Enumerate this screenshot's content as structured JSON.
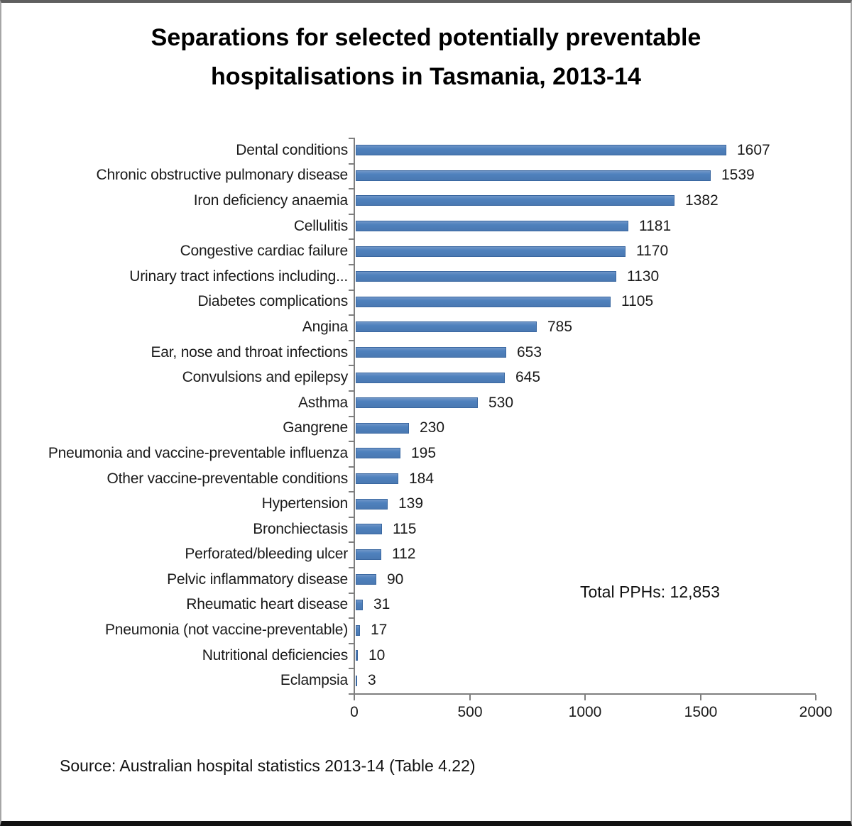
{
  "title": "Separations for selected potentially preventable hospitalisations in Tasmania, 2013-14",
  "chart_data": {
    "type": "bar",
    "orientation": "horizontal",
    "title": "Separations for selected potentially preventable hospitalisations in Tasmania, 2013-14",
    "categories": [
      "Dental conditions",
      "Chronic obstructive pulmonary disease",
      "Iron deficiency anaemia",
      "Cellulitis",
      "Congestive cardiac failure",
      "Urinary tract infections including...",
      "Diabetes complications",
      "Angina",
      "Ear, nose and throat infections",
      "Convulsions and epilepsy",
      "Asthma",
      "Gangrene",
      "Pneumonia and vaccine-preventable influenza",
      "Other vaccine-preventable conditions",
      "Hypertension",
      "Bronchiectasis",
      "Perforated/bleeding ulcer",
      "Pelvic inflammatory disease",
      "Rheumatic heart disease",
      "Pneumonia (not vaccine-preventable)",
      "Nutritional deficiencies",
      "Eclampsia"
    ],
    "values": [
      1607,
      1539,
      1382,
      1181,
      1170,
      1130,
      1105,
      785,
      653,
      645,
      530,
      230,
      195,
      184,
      139,
      115,
      112,
      90,
      31,
      17,
      10,
      3
    ],
    "value_labels": [
      "1607",
      "1539",
      "1382",
      "1181",
      "1170",
      "1130",
      "1105",
      "785",
      "653",
      "645",
      "530",
      "230",
      "195",
      "184",
      "139",
      "115",
      "112",
      "90",
      "31",
      "17",
      "10",
      "3"
    ],
    "xlim": [
      0,
      2000
    ],
    "xticks": [
      "0",
      "500",
      "1000",
      "1500",
      "2000"
    ],
    "xtick_values": [
      0,
      500,
      1000,
      1500,
      2000
    ],
    "grid": "off",
    "legend": "none",
    "bar_color": "#4f81bd",
    "annotation": "Total PPHs: 12,853"
  },
  "source": "Source: Australian hospital statistics 2013-14 (Table 4.22)"
}
